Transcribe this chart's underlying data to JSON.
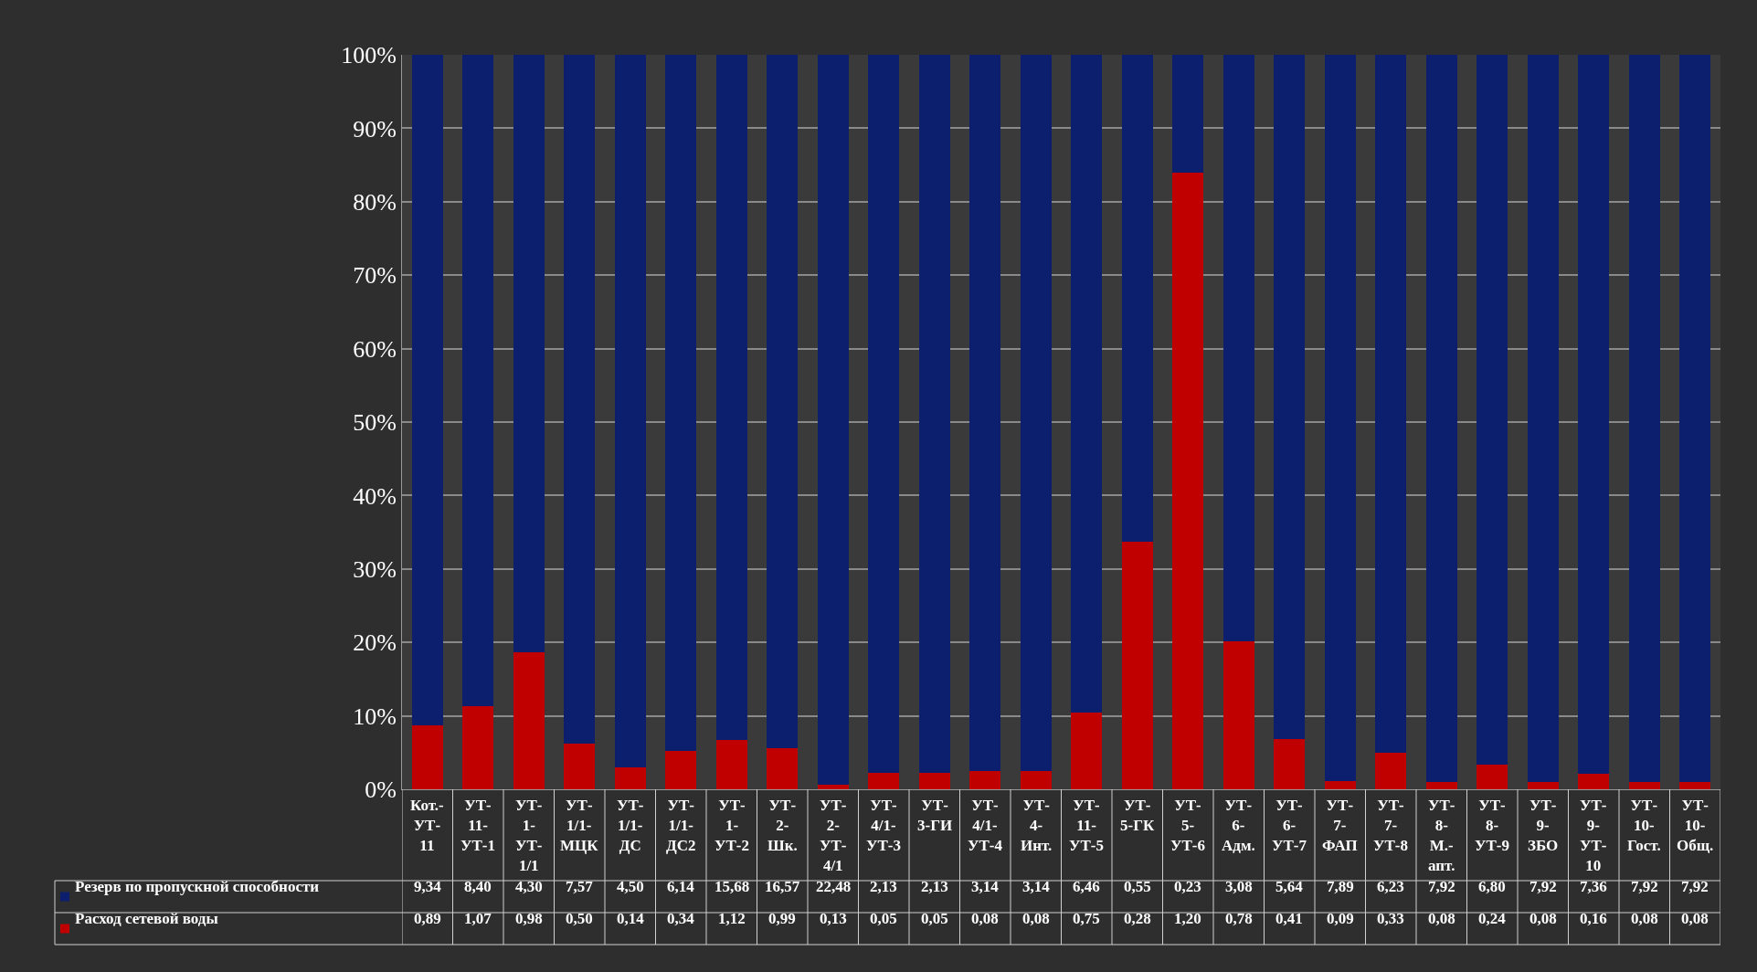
{
  "chart_data": {
    "type": "bar",
    "stacked": true,
    "categories": [
      "Кот.-УТ-11",
      "УТ-11-УТ-1",
      "УТ-1-УТ-1/1",
      "УТ-1/1-МЦК",
      "УТ-1/1-ДС",
      "УТ-1/1-ДС2",
      "УТ-1-УТ-2",
      "УТ-2-Шк.",
      "УТ-2-УТ-4/1",
      "УТ-4/1-УТ-3",
      "УТ-3-ГИ",
      "УТ-4/1-УТ-4",
      "УТ-4-Инт.",
      "УТ-11-УТ-5",
      "УТ-5-ГК",
      "УТ-5-УТ-6",
      "УТ-6-Адм.",
      "УТ-6-УТ-7",
      "УТ-7-ФАП",
      "УТ-7-УТ-8",
      "УТ-8-М.-апт.",
      "УТ-8-УТ-9",
      "УТ-9-ЗБО",
      "УТ-9-УТ-10",
      "УТ-10-Гост.",
      "УТ-10-Общ."
    ],
    "series": [
      {
        "name": "Расход сетевой воды",
        "color": "#c00000",
        "values": [
          8.7,
          11.3,
          18.6,
          6.2,
          3.0,
          5.2,
          6.7,
          5.6,
          0.6,
          2.3,
          2.3,
          2.5,
          2.5,
          10.4,
          33.7,
          83.9,
          20.2,
          6.8,
          1.1,
          5.0,
          1.0,
          3.4,
          1.0,
          2.1,
          1.0,
          1.0
        ]
      },
      {
        "name": "Резерв по пропускной способности",
        "color": "#0c1f6e",
        "values": [
          91.3,
          88.7,
          81.4,
          93.8,
          97.0,
          94.8,
          93.3,
          94.4,
          99.4,
          97.7,
          97.7,
          97.5,
          97.5,
          89.6,
          66.3,
          16.1,
          79.8,
          93.2,
          98.9,
          95.0,
          99.0,
          96.6,
          99.0,
          97.9,
          99.0,
          99.0
        ]
      }
    ],
    "annotations": [
      "9,34",
      "8,40",
      "4,30",
      "7,57",
      "4,50",
      "6,14",
      "15,68",
      "16,57",
      "22,48",
      "2,13",
      "2,13",
      "3,14",
      "3,14",
      "6,46",
      "0,55",
      "0,23",
      "3,08",
      "5,64",
      "7,89",
      "6,23",
      "7,92",
      "6,80",
      "7,92",
      "7,36",
      "7,92",
      "7,92",
      "0,89",
      "1,07",
      "0,98",
      "0,50",
      "0,14",
      "0,34",
      "1,12",
      "0,99",
      "0,13",
      "0,05",
      "0,05",
      "0,08",
      "0,08",
      "0,75",
      "0,28",
      "1,20",
      "0,78",
      "0,41",
      "0,09",
      "0,33",
      "0,08",
      "0,24",
      "0,08",
      "0,16",
      "0,08",
      "0,08"
    ],
    "ylim": [
      0,
      100
    ],
    "yticks": [
      {
        "value": 0,
        "label": "0%"
      },
      {
        "value": 10,
        "label": "10%"
      },
      {
        "value": 20,
        "label": "20%"
      },
      {
        "value": 30,
        "label": "30%"
      },
      {
        "value": 40,
        "label": "40%"
      },
      {
        "value": 50,
        "label": "50%"
      },
      {
        "value": 60,
        "label": "60%"
      },
      {
        "value": 70,
        "label": "70%"
      },
      {
        "value": 80,
        "label": "80%"
      },
      {
        "value": 90,
        "label": "90%"
      },
      {
        "value": 100,
        "label": "100%"
      }
    ],
    "grid": "y",
    "legend": "bottom",
    "tick_labels": "y"
  }
}
